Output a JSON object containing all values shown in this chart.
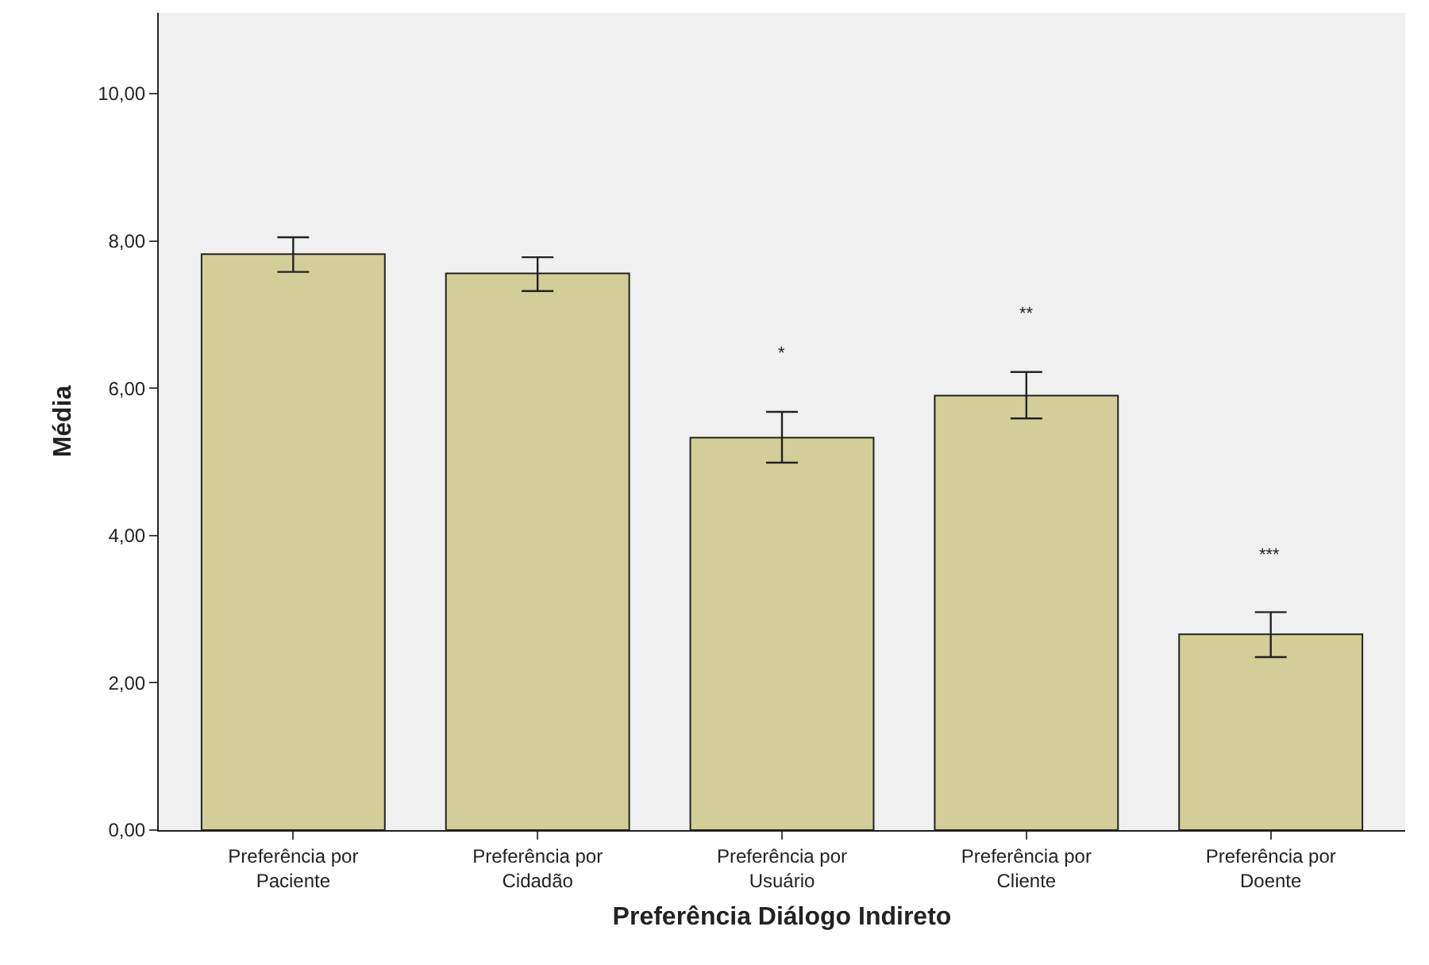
{
  "chart_data": {
    "type": "bar",
    "xlabel": "Preferência Diálogo Indireto",
    "ylabel": "Média",
    "categories": [
      "Preferência por\nPaciente",
      "Preferência por\nCidadão",
      "Preferência por\nUsuário",
      "Preferência por\nCliente",
      "Preferência por\nDoente"
    ],
    "values": [
      7.82,
      7.56,
      5.33,
      5.9,
      2.66
    ],
    "errors": [
      [
        7.58,
        8.05
      ],
      [
        7.32,
        7.78
      ],
      [
        4.99,
        5.68
      ],
      [
        5.59,
        6.22
      ],
      [
        2.35,
        2.96
      ]
    ],
    "color": "#d3ce97",
    "ylim": [
      0,
      11.1
    ],
    "yticks": [
      {
        "value": 0,
        "label": "0,00"
      },
      {
        "value": 2,
        "label": "2,00"
      },
      {
        "value": 4,
        "label": "4,00"
      },
      {
        "value": 6,
        "label": "6,00"
      },
      {
        "value": 8,
        "label": "8,00"
      },
      {
        "value": 10,
        "label": "10,00"
      }
    ],
    "grid": false,
    "legend": false,
    "annotations": [
      {
        "text": "*",
        "x": "Preferência por\nUsuário",
        "y": 5.68
      },
      {
        "text": "**",
        "x": "Preferência por\nCliente",
        "y": 6.22
      },
      {
        "text": "***",
        "x": "Preferência por\nDoente",
        "y": 2.96
      }
    ]
  }
}
